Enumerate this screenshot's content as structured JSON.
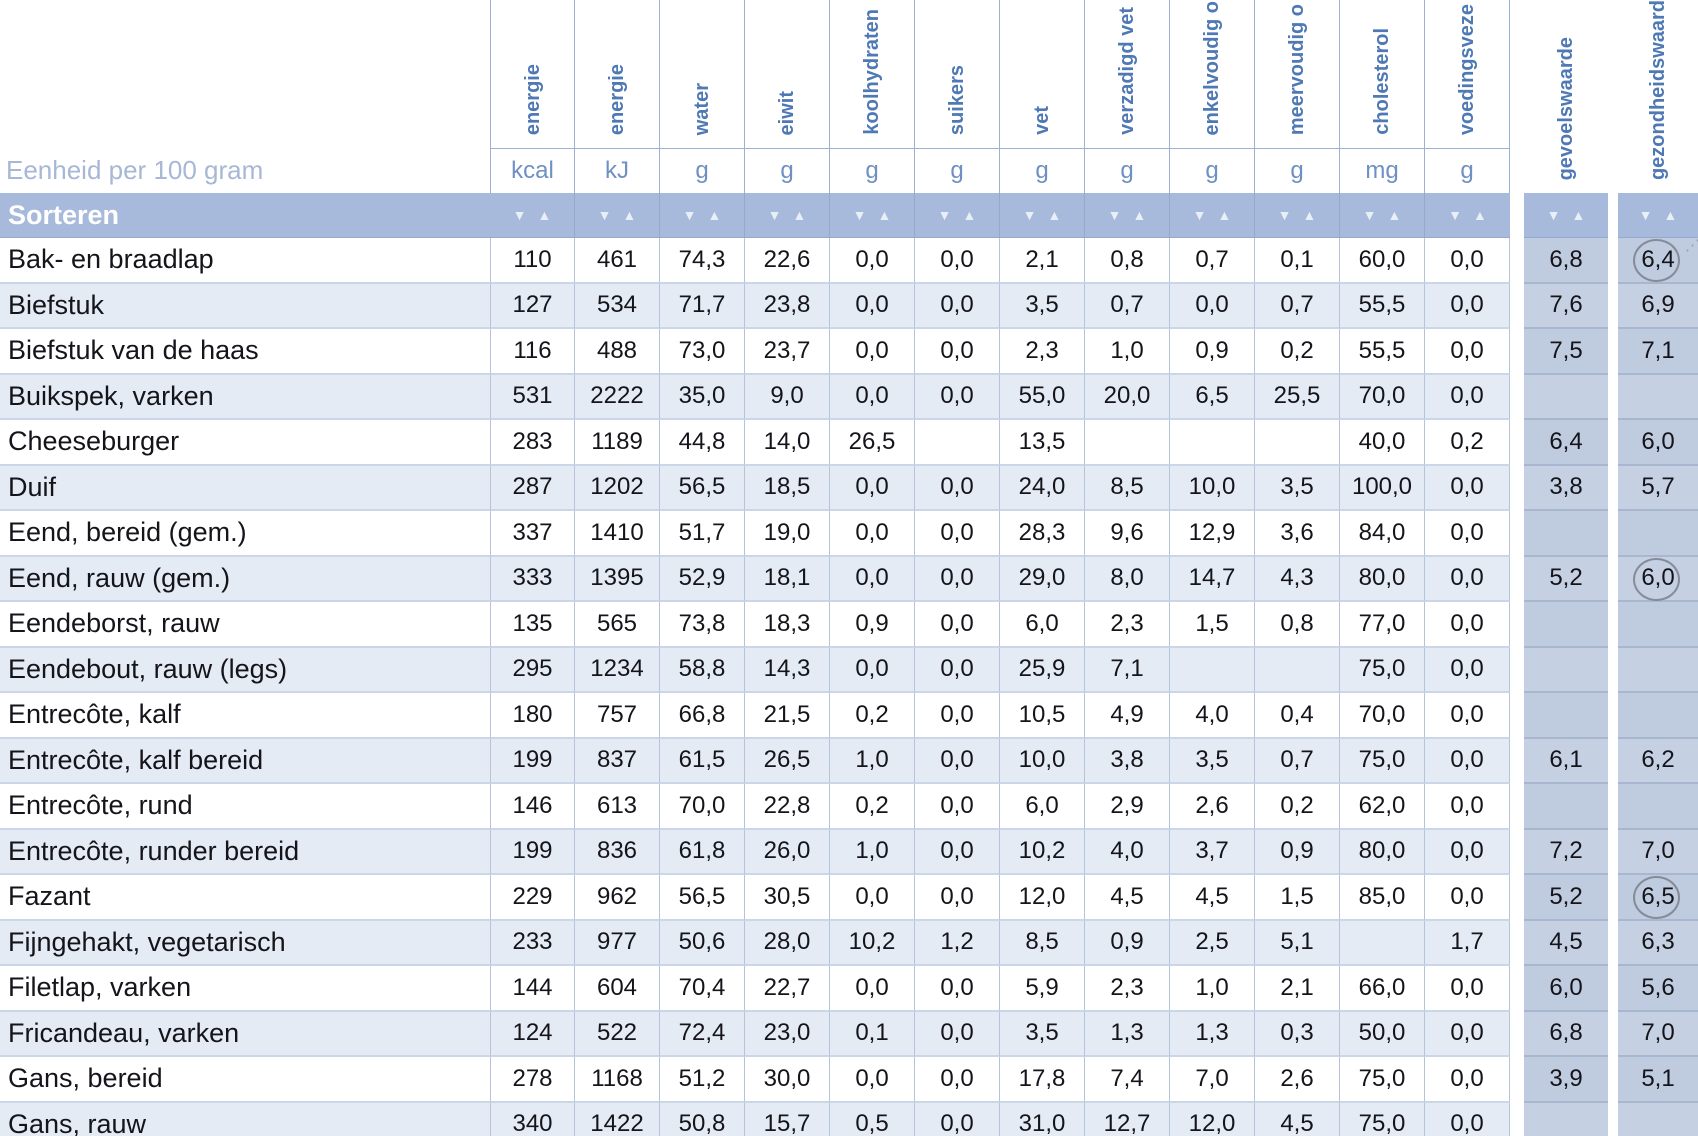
{
  "header": {
    "unit_label": "Eenheid per 100 gram",
    "sort_label": "Sorteren",
    "columns": [
      {
        "label": "energie",
        "unit": "kcal"
      },
      {
        "label": "energie",
        "unit": "kJ"
      },
      {
        "label": "water",
        "unit": "g"
      },
      {
        "label": "eiwit",
        "unit": "g"
      },
      {
        "label": "koolhydraten",
        "unit": "g"
      },
      {
        "label": "suikers",
        "unit": "g"
      },
      {
        "label": "vet",
        "unit": "g"
      },
      {
        "label": "verzadigd vet",
        "unit": "g"
      },
      {
        "label": "enkelvoudig o",
        "unit": "g"
      },
      {
        "label": "meervoudig o",
        "unit": "g"
      },
      {
        "label": "cholesterol",
        "unit": "mg"
      },
      {
        "label": "voedingsveze",
        "unit": "g"
      }
    ],
    "extra_columns": [
      {
        "label": "gevoelswaarde"
      },
      {
        "label": "gezondheidswaard"
      }
    ]
  },
  "icons": {
    "sort_desc": "▼",
    "sort_asc": "▲",
    "annotation_dots": "⋰"
  },
  "colors": {
    "header_text": "#4f79b4",
    "unit_text": "#6e90c3",
    "muted_label": "#a7b7d5",
    "sort_band": "#a7badb",
    "row_tint": "#e5ebf4",
    "score_column_bg": "#bfcbdf",
    "annotation_circle": "#7a808c"
  },
  "rows": [
    {
      "name": "Bak- en braadlap",
      "values": [
        "110",
        "461",
        "74,3",
        "22,6",
        "0,0",
        "0,0",
        "2,1",
        "0,8",
        "0,7",
        "0,1",
        "60,0",
        "0,0"
      ],
      "gevoelswaarde": "6,8",
      "gezondheidswaarde": "6,4",
      "circle": true,
      "circle_dots": true
    },
    {
      "name": "Biefstuk",
      "values": [
        "127",
        "534",
        "71,7",
        "23,8",
        "0,0",
        "0,0",
        "3,5",
        "0,7",
        "0,0",
        "0,7",
        "55,5",
        "0,0"
      ],
      "gevoelswaarde": "7,6",
      "gezondheidswaarde": "6,9",
      "circle": false,
      "circle_dots": false
    },
    {
      "name": "Biefstuk van de haas",
      "values": [
        "116",
        "488",
        "73,0",
        "23,7",
        "0,0",
        "0,0",
        "2,3",
        "1,0",
        "0,9",
        "0,2",
        "55,5",
        "0,0"
      ],
      "gevoelswaarde": "7,5",
      "gezondheidswaarde": "7,1",
      "circle": false,
      "circle_dots": false
    },
    {
      "name": "Buikspek, varken",
      "values": [
        "531",
        "2222",
        "35,0",
        "9,0",
        "0,0",
        "0,0",
        "55,0",
        "20,0",
        "6,5",
        "25,5",
        "70,0",
        "0,0"
      ],
      "gevoelswaarde": "",
      "gezondheidswaarde": "",
      "circle": false,
      "circle_dots": false
    },
    {
      "name": "Cheeseburger",
      "values": [
        "283",
        "1189",
        "44,8",
        "14,0",
        "26,5",
        "",
        "13,5",
        "",
        "",
        "",
        "40,0",
        "0,2"
      ],
      "gevoelswaarde": "6,4",
      "gezondheidswaarde": "6,0",
      "circle": false,
      "circle_dots": false
    },
    {
      "name": "Duif",
      "values": [
        "287",
        "1202",
        "56,5",
        "18,5",
        "0,0",
        "0,0",
        "24,0",
        "8,5",
        "10,0",
        "3,5",
        "100,0",
        "0,0"
      ],
      "gevoelswaarde": "3,8",
      "gezondheidswaarde": "5,7",
      "circle": false,
      "circle_dots": false
    },
    {
      "name": "Eend, bereid (gem.)",
      "values": [
        "337",
        "1410",
        "51,7",
        "19,0",
        "0,0",
        "0,0",
        "28,3",
        "9,6",
        "12,9",
        "3,6",
        "84,0",
        "0,0"
      ],
      "gevoelswaarde": "",
      "gezondheidswaarde": "",
      "circle": false,
      "circle_dots": false
    },
    {
      "name": "Eend, rauw (gem.)",
      "values": [
        "333",
        "1395",
        "52,9",
        "18,1",
        "0,0",
        "0,0",
        "29,0",
        "8,0",
        "14,7",
        "4,3",
        "80,0",
        "0,0"
      ],
      "gevoelswaarde": "5,2",
      "gezondheidswaarde": "6,0",
      "circle": true,
      "circle_dots": false
    },
    {
      "name": "Eendeborst, rauw",
      "values": [
        "135",
        "565",
        "73,8",
        "18,3",
        "0,9",
        "0,0",
        "6,0",
        "2,3",
        "1,5",
        "0,8",
        "77,0",
        "0,0"
      ],
      "gevoelswaarde": "",
      "gezondheidswaarde": "",
      "circle": false,
      "circle_dots": false
    },
    {
      "name": "Eendebout, rauw (legs)",
      "values": [
        "295",
        "1234",
        "58,8",
        "14,3",
        "0,0",
        "0,0",
        "25,9",
        "7,1",
        "",
        "",
        "75,0",
        "0,0"
      ],
      "gevoelswaarde": "",
      "gezondheidswaarde": "",
      "circle": false,
      "circle_dots": false
    },
    {
      "name": "Entrecôte, kalf",
      "values": [
        "180",
        "757",
        "66,8",
        "21,5",
        "0,2",
        "0,0",
        "10,5",
        "4,9",
        "4,0",
        "0,4",
        "70,0",
        "0,0"
      ],
      "gevoelswaarde": "",
      "gezondheidswaarde": "",
      "circle": false,
      "circle_dots": false
    },
    {
      "name": "Entrecôte, kalf bereid",
      "values": [
        "199",
        "837",
        "61,5",
        "26,5",
        "1,0",
        "0,0",
        "10,0",
        "3,8",
        "3,5",
        "0,7",
        "75,0",
        "0,0"
      ],
      "gevoelswaarde": "6,1",
      "gezondheidswaarde": "6,2",
      "circle": false,
      "circle_dots": false
    },
    {
      "name": "Entrecôte, rund",
      "values": [
        "146",
        "613",
        "70,0",
        "22,8",
        "0,2",
        "0,0",
        "6,0",
        "2,9",
        "2,6",
        "0,2",
        "62,0",
        "0,0"
      ],
      "gevoelswaarde": "",
      "gezondheidswaarde": "",
      "circle": false,
      "circle_dots": false
    },
    {
      "name": "Entrecôte, runder bereid",
      "values": [
        "199",
        "836",
        "61,8",
        "26,0",
        "1,0",
        "0,0",
        "10,2",
        "4,0",
        "3,7",
        "0,9",
        "80,0",
        "0,0"
      ],
      "gevoelswaarde": "7,2",
      "gezondheidswaarde": "7,0",
      "circle": false,
      "circle_dots": false
    },
    {
      "name": "Fazant",
      "values": [
        "229",
        "962",
        "56,5",
        "30,5",
        "0,0",
        "0,0",
        "12,0",
        "4,5",
        "4,5",
        "1,5",
        "85,0",
        "0,0"
      ],
      "gevoelswaarde": "5,2",
      "gezondheidswaarde": "6,5",
      "circle": true,
      "circle_dots": false
    },
    {
      "name": "Fijngehakt, vegetarisch",
      "values": [
        "233",
        "977",
        "50,6",
        "28,0",
        "10,2",
        "1,2",
        "8,5",
        "0,9",
        "2,5",
        "5,1",
        "",
        "1,7"
      ],
      "gevoelswaarde": "4,5",
      "gezondheidswaarde": "6,3",
      "circle": false,
      "circle_dots": false
    },
    {
      "name": "Filetlap, varken",
      "values": [
        "144",
        "604",
        "70,4",
        "22,7",
        "0,0",
        "0,0",
        "5,9",
        "2,3",
        "1,0",
        "2,1",
        "66,0",
        "0,0"
      ],
      "gevoelswaarde": "6,0",
      "gezondheidswaarde": "5,6",
      "circle": false,
      "circle_dots": false
    },
    {
      "name": "Fricandeau, varken",
      "values": [
        "124",
        "522",
        "72,4",
        "23,0",
        "0,1",
        "0,0",
        "3,5",
        "1,3",
        "1,3",
        "0,3",
        "50,0",
        "0,0"
      ],
      "gevoelswaarde": "6,8",
      "gezondheidswaarde": "7,0",
      "circle": false,
      "circle_dots": false
    },
    {
      "name": "Gans, bereid",
      "values": [
        "278",
        "1168",
        "51,2",
        "30,0",
        "0,0",
        "0,0",
        "17,8",
        "7,4",
        "7,0",
        "2,6",
        "75,0",
        "0,0"
      ],
      "gevoelswaarde": "3,9",
      "gezondheidswaarde": "5,1",
      "circle": false,
      "circle_dots": false
    },
    {
      "name": "Gans, rauw",
      "values": [
        "340",
        "1422",
        "50,8",
        "15,7",
        "0,5",
        "0,0",
        "31,0",
        "12,7",
        "12,0",
        "4,5",
        "75,0",
        "0,0"
      ],
      "gevoelswaarde": "",
      "gezondheidswaarde": "",
      "circle": false,
      "circle_dots": false
    }
  ]
}
